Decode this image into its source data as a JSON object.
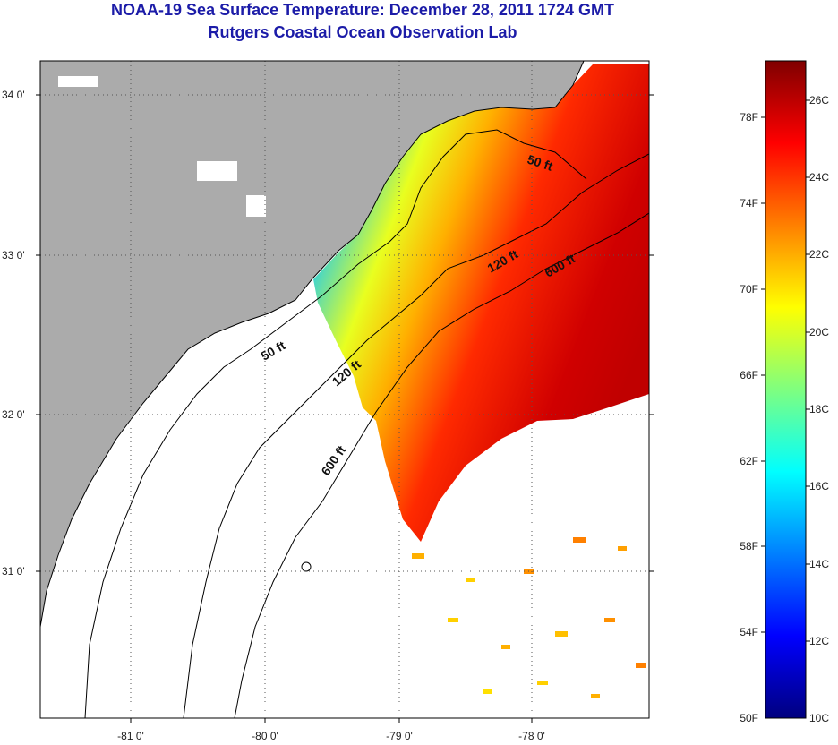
{
  "title": {
    "line1": "NOAA-19 Sea Surface Temperature:  December 28, 2011 1724 GMT",
    "line2": "Rutgers Coastal Ocean Observation Lab"
  },
  "map": {
    "lat_labels": [
      "34 0'",
      "33 0'",
      "32 0'",
      "31 0'"
    ],
    "lon_labels": [
      "-81 0'",
      "-80 0'",
      "-79 0'",
      "-78 0'"
    ],
    "contour_labels": [
      "50 ft",
      "120 ft",
      "600 ft",
      "50 ft",
      "120 ft",
      "600 ft"
    ],
    "colors": {
      "land": "#ababab",
      "no_data": "#ffffff",
      "grid": "#555555"
    }
  },
  "colorbar": {
    "fahrenheit_labels": [
      "78F",
      "74F",
      "70F",
      "66F",
      "62F",
      "58F",
      "54F",
      "50F"
    ],
    "celsius_labels": [
      "26C",
      "24C",
      "22C",
      "20C",
      "18C",
      "16C",
      "14C",
      "12C",
      "10C"
    ],
    "colormap": [
      "#00007f",
      "#0000ff",
      "#007fff",
      "#00ffff",
      "#7fff7f",
      "#ffff00",
      "#ff7f00",
      "#ff0000",
      "#7f0000"
    ]
  }
}
